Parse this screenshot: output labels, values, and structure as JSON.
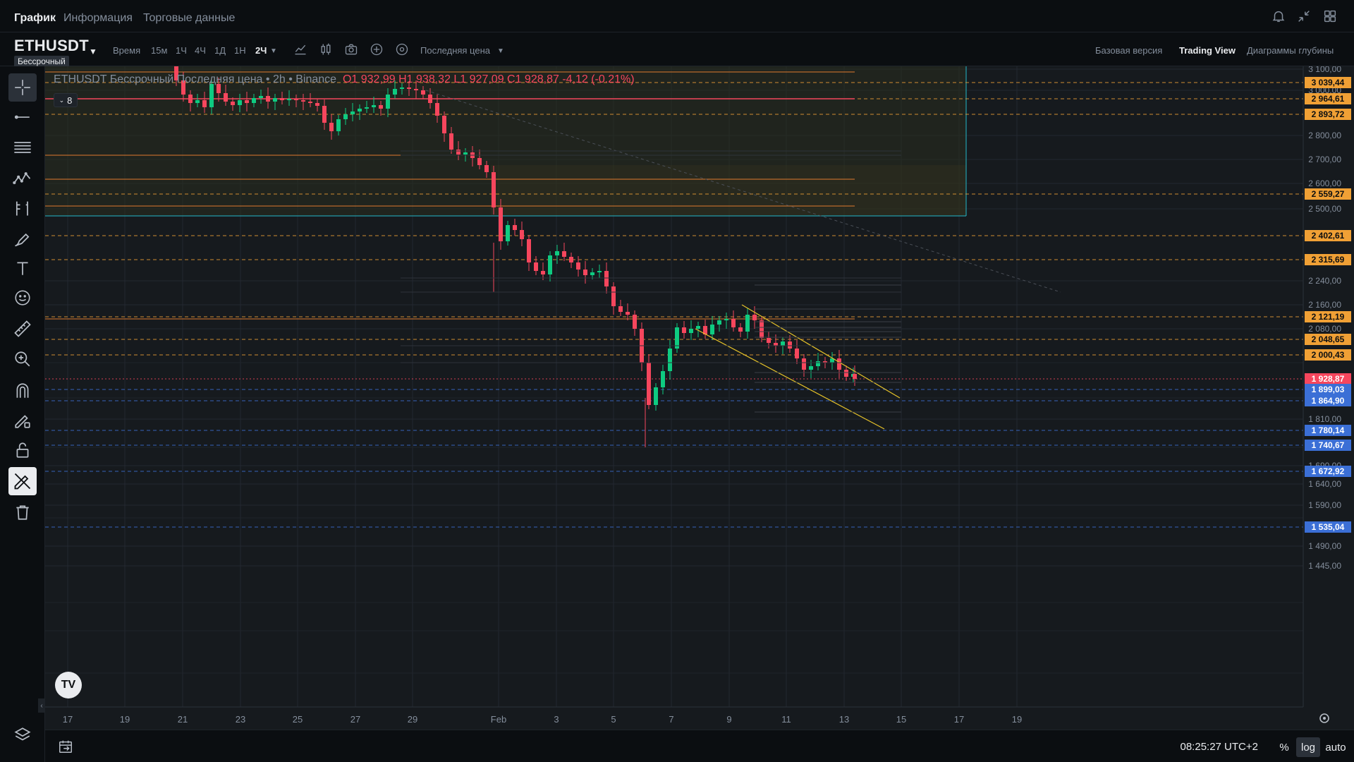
{
  "top_tabs": [
    {
      "label": "График",
      "active": true
    },
    {
      "label": "Информация",
      "active": false
    },
    {
      "label": "Торговые данные",
      "active": false
    }
  ],
  "symbol": {
    "name": "ETHUSDT",
    "badge": "Бессрочный"
  },
  "timeframes": {
    "label": "Время",
    "items": [
      "15м",
      "1Ч",
      "4Ч",
      "1Д",
      "1Н",
      "2Ч"
    ],
    "active": "2Ч"
  },
  "price_type": "Последняя цена",
  "view_tabs": [
    {
      "label": "Базовая версия",
      "active": false
    },
    {
      "label": "Trading View",
      "active": true
    },
    {
      "label": "Диаграммы глубины",
      "active": false
    }
  ],
  "legend": {
    "title": "ETHUSDT Бессрочный Последняя цена • 2h • Binance",
    "ohlc": "O1 932,99  H1 938,32  L1 927,09  C1 928,87  -4,12 (-0.21%)",
    "indicators_count": "8"
  },
  "left_tools": [
    "crosshair-icon",
    "trend-line-icon",
    "horizontal-lines-icon",
    "pattern-icon",
    "projection-icon",
    "brush-icon",
    "text-icon",
    "emoji-icon",
    "ruler-icon",
    "zoom-icon",
    "magnet-icon",
    "lock-drawings-icon",
    "lock-icon",
    "hide-drawings-icon",
    "trash-icon"
  ],
  "layers_icon": "layers-icon",
  "bottom": {
    "clock": "08:25:27 UTC+2",
    "percent": "%",
    "log": "log",
    "auto": "auto"
  },
  "chart_data": {
    "type": "candlestick",
    "x_ticks": [
      "17",
      "19",
      "21",
      "23",
      "25",
      "27",
      "29",
      "Feb",
      "3",
      "5",
      "7",
      "9",
      "11",
      "13",
      "15",
      "17",
      "19"
    ],
    "y_ticks": [
      "3 100,00",
      "3 000,00",
      "2 800,00",
      "2 700,00",
      "2 600,00",
      "2 500,00",
      "2 240,00",
      "2 160,00",
      "2 080,00",
      "1 810,00",
      "1 690,00",
      "1 640,00",
      "1 590,00",
      "1 490,00",
      "1 445,00"
    ],
    "price_labels": [
      {
        "text": "3 039,44",
        "kind": "orange"
      },
      {
        "text": "2 964,61",
        "kind": "orange"
      },
      {
        "text": "2 893,72",
        "kind": "orange"
      },
      {
        "text": "2 559,27",
        "kind": "orange"
      },
      {
        "text": "2 402,61",
        "kind": "orange"
      },
      {
        "text": "2 315,69",
        "kind": "orange"
      },
      {
        "text": "2 121,19",
        "kind": "orange"
      },
      {
        "text": "2 048,65",
        "kind": "orange"
      },
      {
        "text": "2 000,43",
        "kind": "orange"
      },
      {
        "text": "1 928,87",
        "kind": "red"
      },
      {
        "text": "1 899,03",
        "kind": "blue"
      },
      {
        "text": "1 864,90",
        "kind": "blue"
      },
      {
        "text": "1 780,14",
        "kind": "blue"
      },
      {
        "text": "1 740,67",
        "kind": "blue"
      },
      {
        "text": "1 672,92",
        "kind": "blue"
      },
      {
        "text": "1 535,04",
        "kind": "blue"
      }
    ],
    "last_price": "1 928,87",
    "colors": {
      "up": "#0ecb81",
      "down": "#f6465d",
      "orange": "#f0a035",
      "blue": "#3b6fd6",
      "yellow": "#e6c229",
      "cyan": "#22b8c9"
    }
  }
}
